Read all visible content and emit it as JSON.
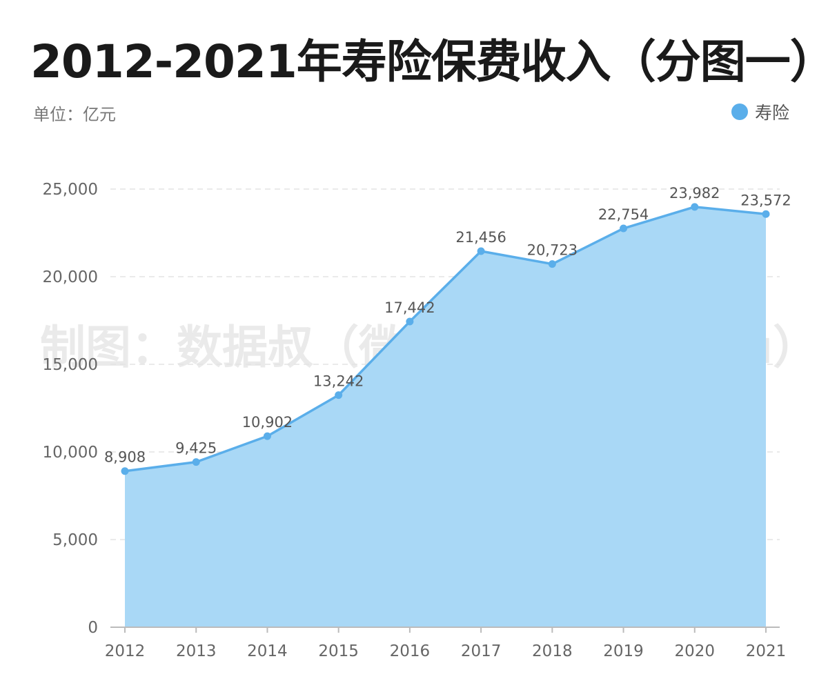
{
  "title": "2012-2021年寿险保费收入（分图一）",
  "unit": "单位：亿元",
  "watermark": "制图：数据叔（微信号：shujushu）",
  "colors": {
    "line": "#5aaeea",
    "area": "#a9d8f6",
    "grid": "#e3e3e3",
    "axis": "#bbbbbb"
  },
  "chart_data": {
    "type": "area",
    "x": [
      "2012",
      "2013",
      "2014",
      "2015",
      "2016",
      "2017",
      "2018",
      "2019",
      "2020",
      "2021"
    ],
    "series": [
      {
        "name": "寿险",
        "values": [
          8908,
          9425,
          10902,
          13242,
          17442,
          21456,
          20723,
          22754,
          23982,
          23572
        ],
        "labels": [
          "8,908",
          "9,425",
          "10,902",
          "13,242",
          "17,442",
          "21,456",
          "20,723",
          "22,754",
          "23,982",
          "23,572"
        ]
      }
    ],
    "ylim": [
      0,
      25000
    ],
    "yticks": [
      0,
      5000,
      10000,
      15000,
      20000,
      25000
    ],
    "ytick_labels": [
      "0",
      "5,000",
      "10,000",
      "15,000",
      "20,000",
      "25,000"
    ],
    "grid": true,
    "legend_position": "top-right"
  }
}
